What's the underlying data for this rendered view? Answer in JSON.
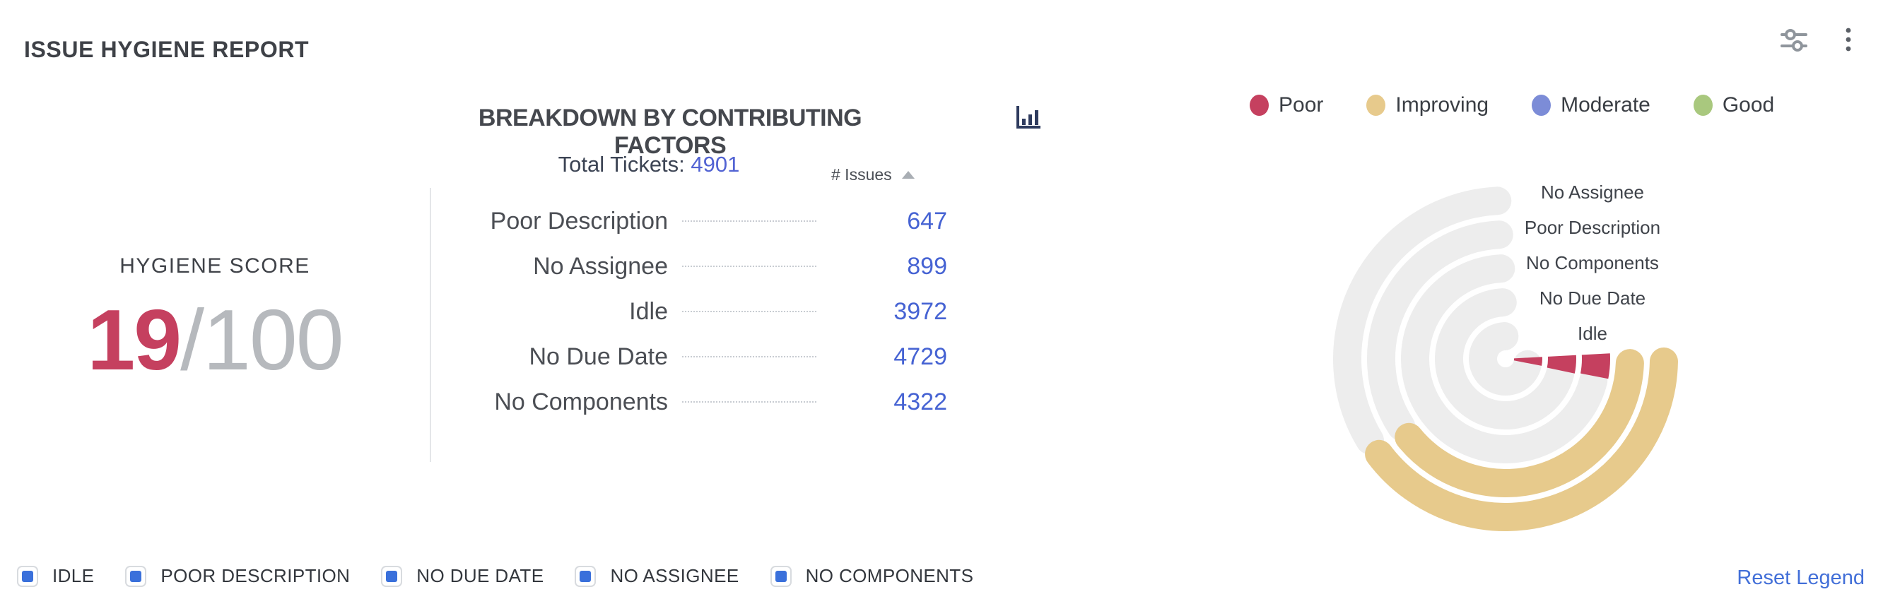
{
  "header": {
    "title": "ISSUE HYGIENE REPORT"
  },
  "toolbar": {
    "filter_icon": "filter-sliders-icon",
    "menu_icon": "kebab-menu-icon",
    "icon_color": "#8f959c"
  },
  "score": {
    "label": "HYGIENE SCORE",
    "value": "19",
    "separator": "/",
    "max": "100",
    "value_color": "#c5405f"
  },
  "breakdown": {
    "title": "BREAKDOWN BY CONTRIBUTING FACTORS",
    "chart_icon": "bar-chart-icon",
    "total_label": "Total Tickets:",
    "total_value": "4901",
    "column_header": "# Issues",
    "sort_direction": "asc",
    "rows": [
      {
        "label": "Poor Description",
        "value": "647"
      },
      {
        "label": "No Assignee",
        "value": "899"
      },
      {
        "label": "Idle",
        "value": "3972"
      },
      {
        "label": "No Due Date",
        "value": "4729"
      },
      {
        "label": "No Components",
        "value": "4322"
      }
    ]
  },
  "status_legend": {
    "items": [
      {
        "label": "Poor",
        "color": "#c5405f"
      },
      {
        "label": "Improving",
        "color": "#e7ca8c"
      },
      {
        "label": "Moderate",
        "color": "#7c8cd7"
      },
      {
        "label": "Good",
        "color": "#a9c87e"
      }
    ]
  },
  "chart_data": {
    "type": "radial-bar",
    "track_color": "#ededed",
    "total_tickets": 4901,
    "rings": [
      {
        "label": "Idle",
        "issues": 3972,
        "status": "Poor",
        "fill_color": "#c5405f",
        "fill_style": "sector",
        "fill_start_deg": 87,
        "fill_end_deg": 101,
        "track_start_deg": 104,
        "track_end_deg": 357
      },
      {
        "label": "No Due Date",
        "issues": 4729,
        "status": "Poor",
        "fill_color": "#c5405f",
        "fill_style": "sector",
        "fill_start_deg": 87,
        "fill_end_deg": 102,
        "track_start_deg": 105,
        "track_end_deg": 357
      },
      {
        "label": "No Components",
        "issues": 4322,
        "status": "Poor",
        "fill_color": "#c5405f",
        "fill_style": "sector",
        "fill_start_deg": 87,
        "fill_end_deg": 101,
        "track_start_deg": 104,
        "track_end_deg": 357
      },
      {
        "label": "Poor Description",
        "issues": 647,
        "status": "Improving",
        "fill_color": "#e7ca8c",
        "fill_style": "arc",
        "fill_start_deg": 92,
        "fill_end_deg": 231,
        "track_start_deg": 237,
        "track_end_deg": 357
      },
      {
        "label": "No Assignee",
        "issues": 899,
        "status": "Improving",
        "fill_color": "#e7ca8c",
        "fill_style": "arc",
        "fill_start_deg": 91,
        "fill_end_deg": 233,
        "track_start_deg": 239,
        "track_end_deg": 357
      }
    ]
  },
  "filter_legend": {
    "checkbox_color": "#3a70db",
    "items": [
      "IDLE",
      "POOR DESCRIPTION",
      "NO DUE DATE",
      "NO ASSIGNEE",
      "NO COMPONENTS"
    ],
    "reset_label": "Reset Legend"
  }
}
